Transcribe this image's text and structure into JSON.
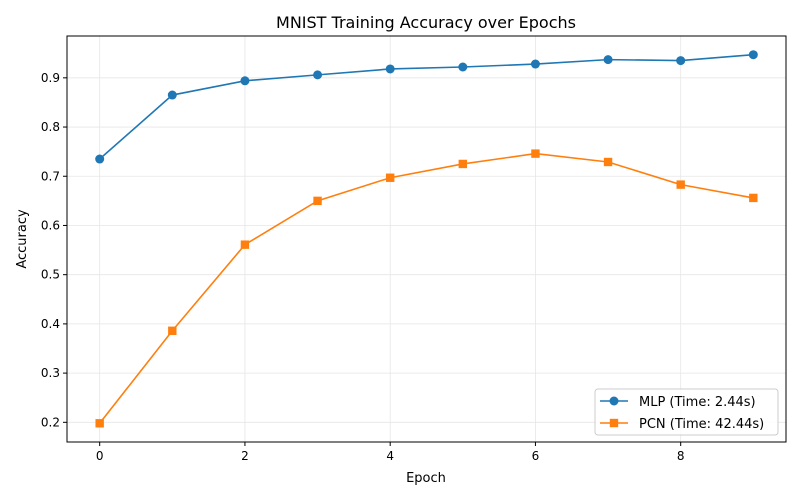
{
  "chart_data": {
    "type": "line",
    "title": "MNIST Training Accuracy over Epochs",
    "xlabel": "Epoch",
    "ylabel": "Accuracy",
    "x": [
      0,
      1,
      2,
      3,
      4,
      5,
      6,
      7,
      8,
      9
    ],
    "xlim": [
      -0.45,
      9.45
    ],
    "ylim": [
      0.16,
      0.985
    ],
    "xticks": [
      0,
      2,
      4,
      6,
      8
    ],
    "yticks": [
      0.2,
      0.3,
      0.4,
      0.5,
      0.6,
      0.7,
      0.8,
      0.9
    ],
    "grid": true,
    "legend_position": "lower-right",
    "series": [
      {
        "name": "MLP (Time: 2.44s)",
        "color": "#1f77b4",
        "marker": "circle",
        "values": [
          0.735,
          0.865,
          0.894,
          0.906,
          0.918,
          0.922,
          0.928,
          0.937,
          0.935,
          0.947
        ]
      },
      {
        "name": "PCN (Time: 42.44s)",
        "color": "#ff7f0e",
        "marker": "square",
        "values": [
          0.198,
          0.386,
          0.561,
          0.65,
          0.697,
          0.725,
          0.746,
          0.729,
          0.683,
          0.656
        ]
      }
    ]
  }
}
